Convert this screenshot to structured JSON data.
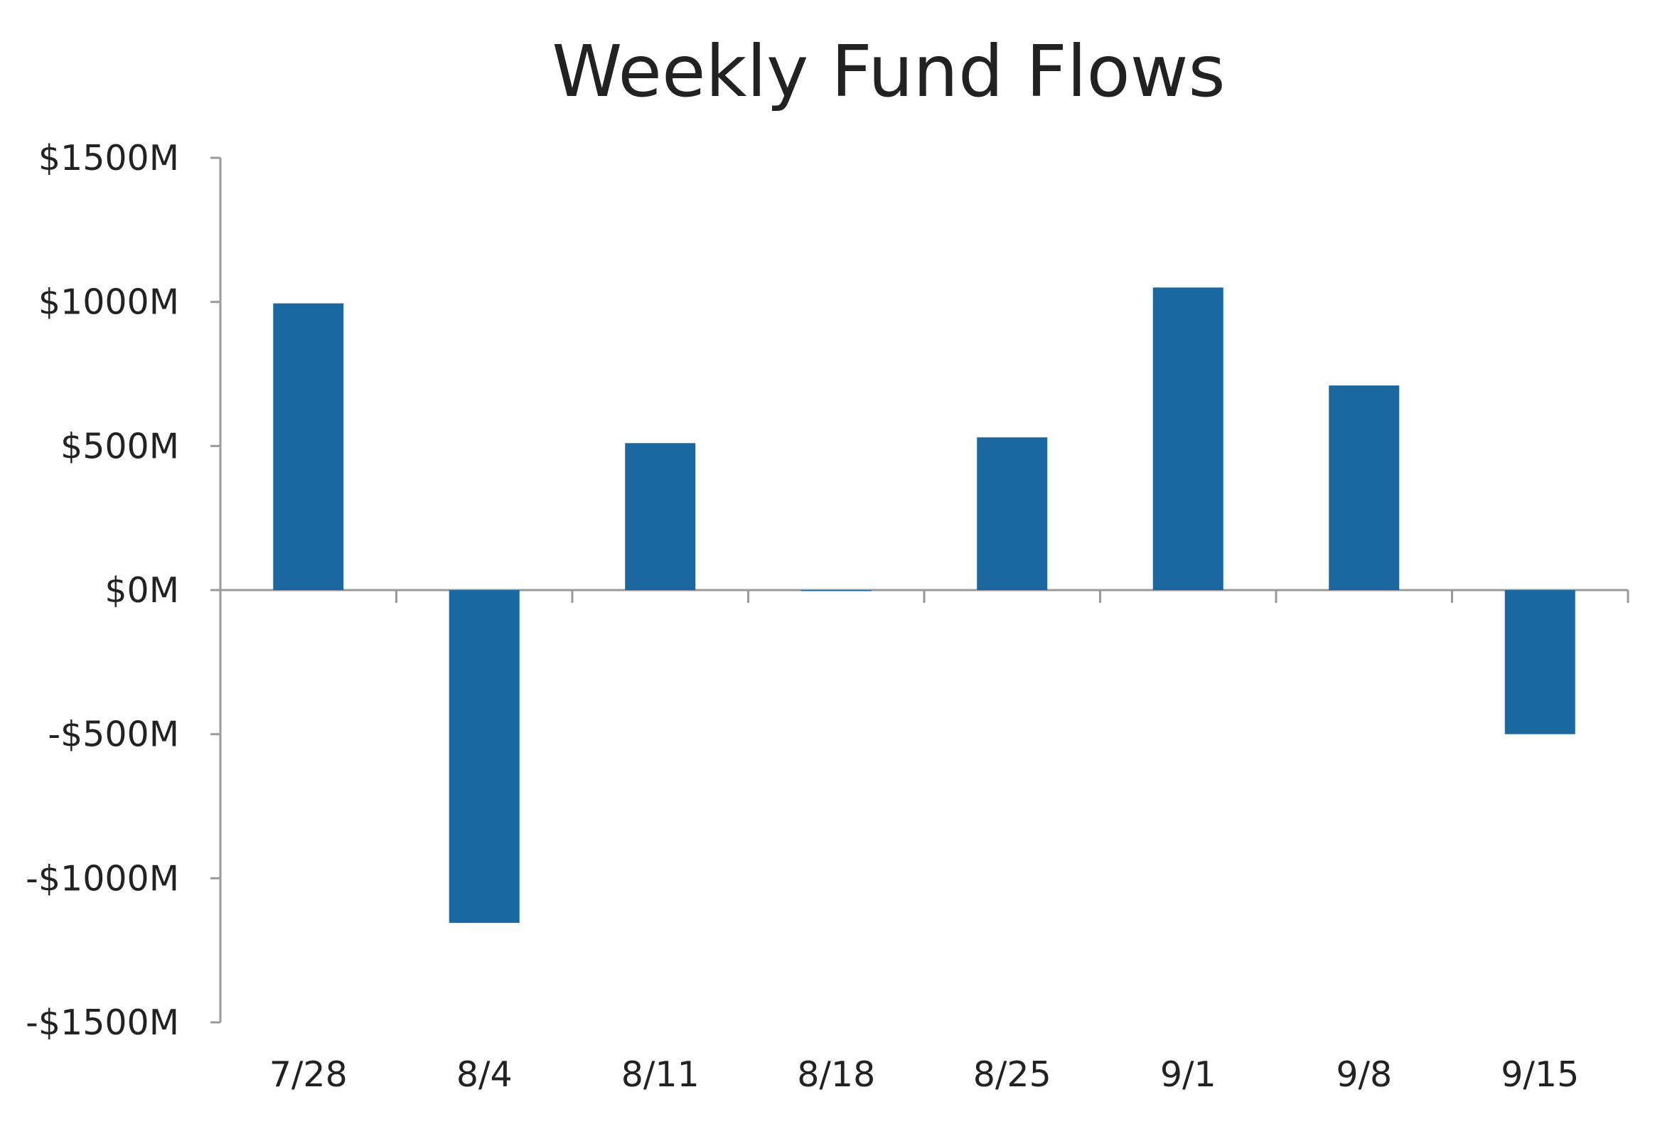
{
  "chart_data": {
    "type": "bar",
    "title": "Weekly Fund Flows",
    "xlabel": "",
    "ylabel": "",
    "categories": [
      "7/28",
      "8/4",
      "8/11",
      "8/18",
      "8/25",
      "9/1",
      "9/8",
      "9/15"
    ],
    "values": [
      995,
      -1155,
      510,
      -3,
      530,
      1050,
      710,
      -500
    ],
    "unit": "M",
    "ylim": [
      -1500,
      1500
    ],
    "yticks": [
      1500,
      1000,
      500,
      0,
      -500,
      -1000,
      -1500
    ],
    "ytick_labels": [
      "$1500M",
      "$1000M",
      "$500M",
      "$0M",
      "-$500M",
      "-$1000M",
      "-$1500M"
    ],
    "grid": false,
    "legend": "none",
    "colors": {
      "bar": "#1a689f",
      "axis": "#9a9a9a",
      "text": "#222222"
    }
  }
}
